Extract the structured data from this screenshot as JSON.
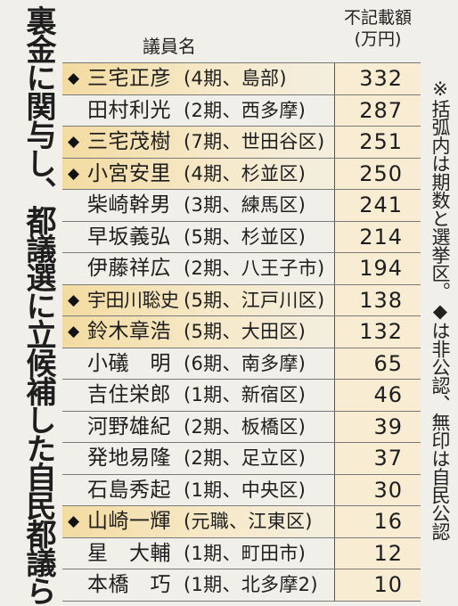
{
  "title": "裏金に関与し、都議選に立候補した自民都議ら",
  "header": {
    "name_col": "議員名",
    "amount_col_line1": "不記載額",
    "amount_col_line2": "(万円)"
  },
  "note": "※括弧内は期数と選挙区。◆は非公認、無印は自民公認",
  "marker_symbol": "◆",
  "highlight_color": "#f3dba0",
  "rows": [
    {
      "name": "三宅正彦",
      "detail": "(4期、島部)",
      "amount": "332",
      "unendorsed": true
    },
    {
      "name": "田村利光",
      "detail": "(2期、西多摩)",
      "amount": "287",
      "unendorsed": false
    },
    {
      "name": "三宅茂樹",
      "detail": "(7期、世田谷区)",
      "amount": "251",
      "unendorsed": true
    },
    {
      "name": "小宮安里",
      "detail": "(4期、杉並区)",
      "amount": "250",
      "unendorsed": true
    },
    {
      "name": "柴崎幹男",
      "detail": "(3期、練馬区)",
      "amount": "241",
      "unendorsed": false
    },
    {
      "name": "早坂義弘",
      "detail": "(5期、杉並区)",
      "amount": "214",
      "unendorsed": false
    },
    {
      "name": "伊藤祥広",
      "detail": "(2期、八王子市)",
      "amount": "194",
      "unendorsed": false
    },
    {
      "name": "宇田川聡史",
      "detail": "(5期、江戸川区)",
      "amount": "138",
      "unendorsed": true
    },
    {
      "name": "鈴木章浩",
      "detail": "(5期、大田区)",
      "amount": "132",
      "unendorsed": true
    },
    {
      "name": "小礒　明",
      "detail": "(6期、南多摩)",
      "amount": "65",
      "unendorsed": false
    },
    {
      "name": "吉住栄郎",
      "detail": "(1期、新宿区)",
      "amount": "46",
      "unendorsed": false
    },
    {
      "name": "河野雄紀",
      "detail": "(2期、板橋区)",
      "amount": "39",
      "unendorsed": false
    },
    {
      "name": "発地易隆",
      "detail": "(2期、足立区)",
      "amount": "37",
      "unendorsed": false
    },
    {
      "name": "石島秀起",
      "detail": "(1期、中央区)",
      "amount": "30",
      "unendorsed": false
    },
    {
      "name": "山崎一輝",
      "detail": "(元職、江東区)",
      "amount": "16",
      "unendorsed": true
    },
    {
      "name": "星　大輔",
      "detail": "(1期、町田市)",
      "amount": "12",
      "unendorsed": false
    },
    {
      "name": "本橋　巧",
      "detail": "(1期、北多摩2)",
      "amount": "10",
      "unendorsed": false
    }
  ]
}
